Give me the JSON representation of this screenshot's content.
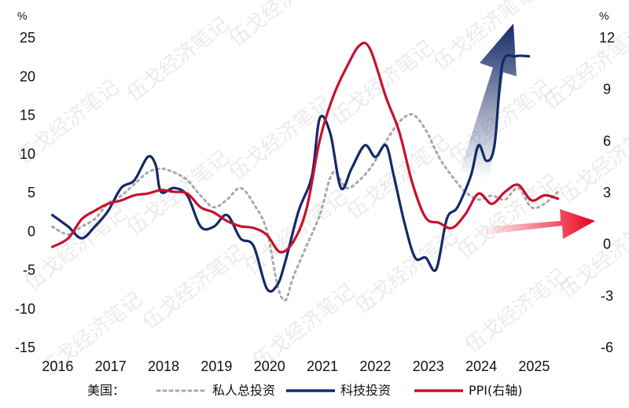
{
  "chart_data": {
    "type": "line",
    "left_axis": {
      "unit": "%",
      "ticks": [
        "25",
        "20",
        "15",
        "10",
        "5",
        "0",
        "-5",
        "-10",
        "-15"
      ],
      "ylim": [
        -15,
        25
      ]
    },
    "right_axis": {
      "unit": "%",
      "ticks": [
        "12",
        "9",
        "6",
        "3",
        "0",
        "-3",
        "-6"
      ],
      "ylim": [
        -6,
        12
      ]
    },
    "x_ticks": [
      "2016",
      "2017",
      "2018",
      "2019",
      "2020",
      "2021",
      "2022",
      "2023",
      "2024",
      "2025"
    ],
    "xlim": [
      2016.0,
      2025.95
    ],
    "legend": {
      "prefix": "美国：",
      "items": [
        {
          "label": "私人总投资",
          "color": "#a8a8a8",
          "style": "dotted"
        },
        {
          "label": "科技投资",
          "color": "#142a66",
          "style": "solid"
        },
        {
          "label": "PPI(右轴)",
          "color": "#c8102e",
          "style": "solid"
        }
      ]
    },
    "watermark": "伍戈经济笔记",
    "series": [
      {
        "name": "私人总投资",
        "axis": "left",
        "color": "#a8a8a8",
        "points": [
          [
            2015.95,
            0.5
          ],
          [
            2016.25,
            -0.5
          ],
          [
            2016.5,
            0.5
          ],
          [
            2016.75,
            1.5
          ],
          [
            2017.0,
            3.5
          ],
          [
            2017.25,
            4.5
          ],
          [
            2017.5,
            6.0
          ],
          [
            2017.75,
            7.5
          ],
          [
            2018.0,
            8.0
          ],
          [
            2018.25,
            7.5
          ],
          [
            2018.5,
            6.5
          ],
          [
            2018.75,
            4.5
          ],
          [
            2019.0,
            3.0
          ],
          [
            2019.25,
            4.0
          ],
          [
            2019.5,
            5.5
          ],
          [
            2019.75,
            3.5
          ],
          [
            2020.0,
            0.0
          ],
          [
            2020.2,
            -7.0
          ],
          [
            2020.35,
            -9.0
          ],
          [
            2020.5,
            -6.0
          ],
          [
            2020.75,
            -2.0
          ],
          [
            2021.0,
            2.0
          ],
          [
            2021.25,
            7.5
          ],
          [
            2021.5,
            5.5
          ],
          [
            2021.75,
            6.5
          ],
          [
            2022.0,
            8.5
          ],
          [
            2022.25,
            11.5
          ],
          [
            2022.5,
            14.0
          ],
          [
            2022.75,
            15.0
          ],
          [
            2023.0,
            13.0
          ],
          [
            2023.25,
            9.5
          ],
          [
            2023.5,
            7.0
          ],
          [
            2023.75,
            5.0
          ],
          [
            2024.0,
            4.0
          ],
          [
            2024.25,
            4.5
          ],
          [
            2024.5,
            4.0
          ],
          [
            2024.75,
            5.5
          ],
          [
            2025.0,
            3.0
          ],
          [
            2025.25,
            3.5
          ],
          [
            2025.5,
            5.0
          ]
        ]
      },
      {
        "name": "科技投资",
        "axis": "left",
        "color": "#142a66",
        "points": [
          [
            2015.95,
            2.0
          ],
          [
            2016.25,
            0.5
          ],
          [
            2016.5,
            -1.0
          ],
          [
            2016.75,
            0.5
          ],
          [
            2017.0,
            2.5
          ],
          [
            2017.25,
            5.5
          ],
          [
            2017.5,
            6.5
          ],
          [
            2017.75,
            9.5
          ],
          [
            2017.9,
            8.5
          ],
          [
            2018.0,
            5.0
          ],
          [
            2018.25,
            5.5
          ],
          [
            2018.5,
            4.5
          ],
          [
            2018.75,
            0.5
          ],
          [
            2019.0,
            0.5
          ],
          [
            2019.25,
            2.0
          ],
          [
            2019.5,
            -1.0
          ],
          [
            2019.75,
            -2.0
          ],
          [
            2020.0,
            -7.5
          ],
          [
            2020.2,
            -7.0
          ],
          [
            2020.35,
            -4.0
          ],
          [
            2020.6,
            2.5
          ],
          [
            2020.85,
            7.0
          ],
          [
            2021.0,
            14.5
          ],
          [
            2021.2,
            12.5
          ],
          [
            2021.4,
            5.5
          ],
          [
            2021.6,
            8.0
          ],
          [
            2021.85,
            11.0
          ],
          [
            2022.05,
            9.5
          ],
          [
            2022.25,
            11.0
          ],
          [
            2022.4,
            7.0
          ],
          [
            2022.6,
            1.0
          ],
          [
            2022.8,
            -3.5
          ],
          [
            2023.0,
            -3.5
          ],
          [
            2023.2,
            -5.0
          ],
          [
            2023.4,
            1.5
          ],
          [
            2023.6,
            3.0
          ],
          [
            2023.85,
            7.0
          ],
          [
            2024.0,
            11.0
          ],
          [
            2024.15,
            9.0
          ],
          [
            2024.3,
            11.0
          ],
          [
            2024.45,
            21.5
          ],
          [
            2024.7,
            22.5
          ],
          [
            2024.95,
            22.5
          ]
        ]
      },
      {
        "name": "PPI(右轴)",
        "axis": "right",
        "color": "#c8102e",
        "points": [
          [
            2015.95,
            -0.2
          ],
          [
            2016.25,
            0.3
          ],
          [
            2016.5,
            1.4
          ],
          [
            2016.75,
            1.9
          ],
          [
            2017.0,
            2.3
          ],
          [
            2017.25,
            2.5
          ],
          [
            2017.5,
            2.8
          ],
          [
            2017.75,
            2.9
          ],
          [
            2018.0,
            3.1
          ],
          [
            2018.25,
            3.0
          ],
          [
            2018.5,
            2.9
          ],
          [
            2018.75,
            2.1
          ],
          [
            2019.0,
            1.8
          ],
          [
            2019.25,
            1.3
          ],
          [
            2019.5,
            1.0
          ],
          [
            2019.75,
            0.9
          ],
          [
            2020.0,
            0.5
          ],
          [
            2020.25,
            -0.5
          ],
          [
            2020.5,
            0.1
          ],
          [
            2020.75,
            2.0
          ],
          [
            2021.0,
            6.0
          ],
          [
            2021.25,
            8.5
          ],
          [
            2021.5,
            10.2
          ],
          [
            2021.75,
            11.5
          ],
          [
            2021.95,
            11.3
          ],
          [
            2022.25,
            8.5
          ],
          [
            2022.5,
            6.5
          ],
          [
            2022.75,
            3.5
          ],
          [
            2023.0,
            1.5
          ],
          [
            2023.25,
            1.2
          ],
          [
            2023.5,
            0.9
          ],
          [
            2023.75,
            1.7
          ],
          [
            2024.0,
            2.9
          ],
          [
            2024.25,
            2.3
          ],
          [
            2024.5,
            3.0
          ],
          [
            2024.75,
            3.4
          ],
          [
            2025.0,
            2.5
          ],
          [
            2025.25,
            2.8
          ],
          [
            2025.5,
            2.6
          ]
        ]
      }
    ]
  }
}
